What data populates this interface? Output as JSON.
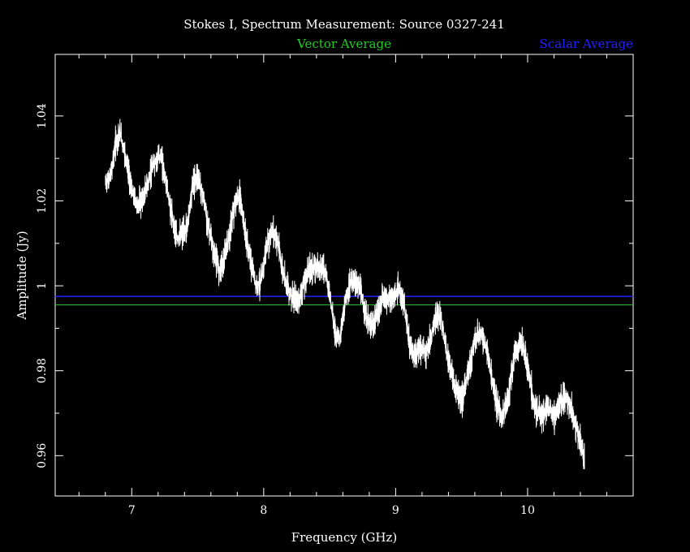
{
  "chart_data": {
    "type": "line",
    "title": "Stokes I, Spectrum Measurement: Source 0327-241",
    "xlabel": "Frequency (GHz)",
    "ylabel": "Amplitude (Jy)",
    "xlim": [
      6.42,
      10.8
    ],
    "ylim": [
      0.9505,
      1.0545
    ],
    "x_ticks_major": [
      7,
      8,
      9,
      10
    ],
    "x_tick_labels": [
      "7",
      "8",
      "9",
      "10"
    ],
    "y_ticks_major": [
      0.96,
      0.98,
      1.0,
      1.02,
      1.04
    ],
    "y_tick_labels": [
      "0.96",
      "0.98",
      "1",
      "1.02",
      "1.04"
    ],
    "grid": false,
    "legend_placement": "top",
    "colors": {
      "background": "#000000",
      "frame": "#ffffff",
      "spectrum": "#ffffff",
      "vector_average": "#22cc22",
      "scalar_average": "#2222ff",
      "title": "#ffffff"
    },
    "series": [
      {
        "name": "Spectrum",
        "color": "#ffffff",
        "x": [
          6.8,
          6.84,
          6.88,
          6.91,
          6.95,
          7.0,
          7.04,
          7.08,
          7.12,
          7.17,
          7.22,
          7.26,
          7.3,
          7.34,
          7.38,
          7.42,
          7.46,
          7.5,
          7.54,
          7.58,
          7.62,
          7.66,
          7.7,
          7.74,
          7.78,
          7.82,
          7.86,
          7.9,
          7.94,
          7.98,
          8.02,
          8.06,
          8.1,
          8.14,
          8.18,
          8.22,
          8.26,
          8.3,
          8.34,
          8.38,
          8.42,
          8.46,
          8.5,
          8.54,
          8.58,
          8.62,
          8.66,
          8.7,
          8.74,
          8.78,
          8.82,
          8.86,
          8.9,
          8.94,
          8.98,
          9.02,
          9.06,
          9.1,
          9.14,
          9.18,
          9.22,
          9.26,
          9.3,
          9.34,
          9.4,
          9.45,
          9.5,
          9.55,
          9.6,
          9.65,
          9.7,
          9.75,
          9.8,
          9.85,
          9.9,
          9.95,
          10.0,
          10.05,
          10.1,
          10.15,
          10.2,
          10.25,
          10.3,
          10.35,
          10.4,
          10.43
        ],
        "values": [
          1.024,
          1.026,
          1.034,
          1.036,
          1.031,
          1.022,
          1.019,
          1.02,
          1.024,
          1.029,
          1.031,
          1.024,
          1.017,
          1.011,
          1.012,
          1.014,
          1.024,
          1.026,
          1.021,
          1.014,
          1.008,
          1.004,
          1.006,
          1.012,
          1.019,
          1.021,
          1.012,
          1.006,
          1.0,
          1.001,
          1.009,
          1.013,
          1.011,
          1.004,
          1.0,
          0.997,
          0.996,
          1.0,
          1.004,
          1.004,
          1.005,
          1.004,
          0.998,
          0.989,
          0.988,
          0.997,
          1.001,
          1.001,
          0.998,
          0.992,
          0.99,
          0.993,
          0.997,
          0.997,
          0.997,
          0.999,
          0.996,
          0.987,
          0.983,
          0.986,
          0.984,
          0.987,
          0.992,
          0.993,
          0.982,
          0.976,
          0.973,
          0.98,
          0.987,
          0.989,
          0.983,
          0.974,
          0.969,
          0.973,
          0.984,
          0.987,
          0.981,
          0.972,
          0.969,
          0.972,
          0.969,
          0.973,
          0.974,
          0.969,
          0.963,
          0.96
        ]
      }
    ],
    "reference_lines": [
      {
        "name": "Vector Average",
        "y": 0.9955,
        "color": "#22cc22"
      },
      {
        "name": "Scalar Average",
        "y": 0.9975,
        "color": "#2222ff"
      }
    ]
  }
}
